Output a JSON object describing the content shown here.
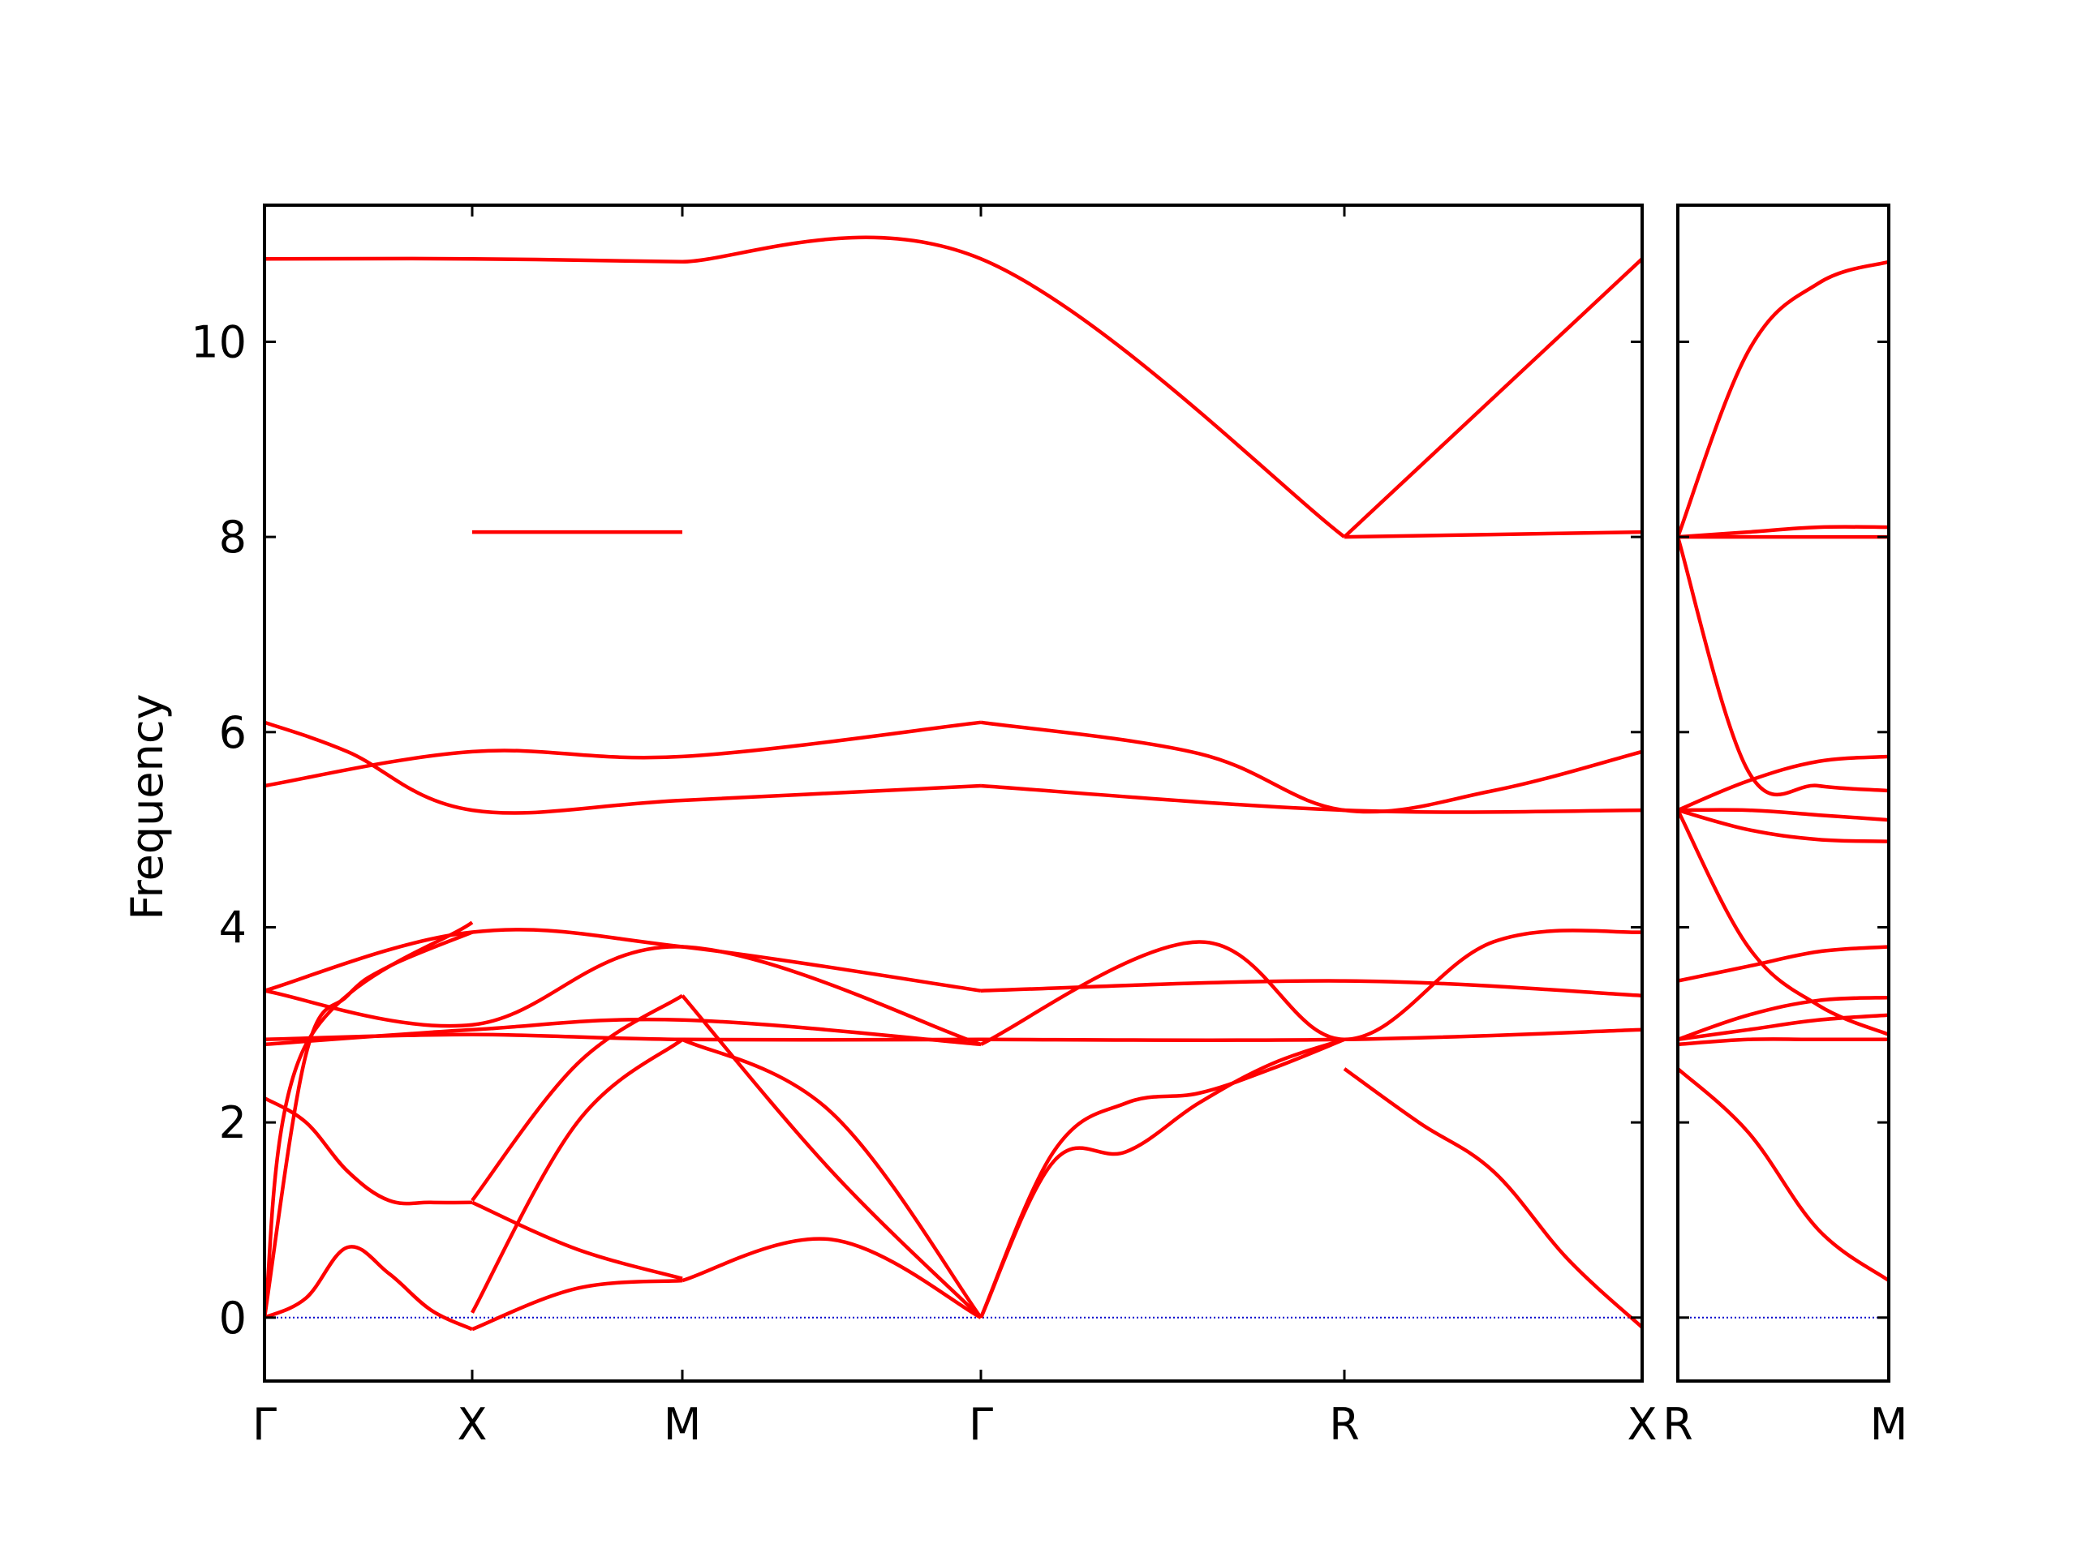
{
  "chart_data": [
    {
      "type": "line",
      "title": "",
      "xlabel": "",
      "ylabel": "Frequency",
      "ylim": [
        -0.65,
        11.4
      ],
      "grid": false,
      "legend": "none",
      "x_ticks": [
        "Γ",
        "X",
        "M",
        "Γ",
        "R",
        "X"
      ],
      "x_segments": [
        "Γ-X",
        "X-M",
        "M-Γ",
        "Γ-R",
        "R-X"
      ],
      "y_ticks": [
        0,
        2,
        4,
        6,
        8,
        10
      ],
      "line_color": "#ff0000",
      "zero_line_color": "#0000cc",
      "series": [
        {
          "x": [
            0,
            1,
            2,
            3,
            4,
            5
          ],
          "values": [
            0,
            0.2,
            0.72,
            0.45,
            0.08,
            -0.12
          ]
        },
        {
          "x": [
            5,
            6,
            7
          ],
          "values": [
            -0.12,
            0.3,
            0.38
          ]
        },
        {
          "x": [
            7,
            8,
            9
          ],
          "values": [
            0.38,
            0.8,
            0
          ]
        },
        {
          "x": [
            0,
            1,
            5
          ],
          "values": [
            0,
            2.8,
            4.05
          ]
        },
        {
          "x": [
            0,
            1,
            2,
            3,
            5
          ],
          "values": [
            0,
            2.7,
            3.3,
            3.6,
            3.95
          ]
        },
        {
          "x": [
            5,
            6,
            7
          ],
          "values": [
            0.05,
            2.0,
            2.85
          ]
        },
        {
          "x": [
            5,
            6,
            7
          ],
          "values": [
            1.2,
            2.6,
            3.3
          ]
        },
        {
          "x": [
            7,
            8,
            9
          ],
          "values": [
            3.3,
            1.5,
            0
          ]
        },
        {
          "x": [
            7,
            8,
            9
          ],
          "values": [
            2.85,
            2.1,
            0
          ]
        },
        {
          "x": [
            9,
            10,
            11,
            12,
            13,
            14
          ],
          "values": [
            0,
            1.7,
            2.2,
            2.3,
            2.55,
            2.85
          ]
        },
        {
          "x": [
            9,
            10,
            11,
            12,
            13,
            14
          ],
          "values": [
            0,
            1.6,
            1.7,
            2.2,
            2.6,
            2.85
          ]
        },
        {
          "x": [
            14,
            15,
            16,
            17,
            18
          ],
          "values": [
            2.55,
            2.0,
            1.5,
            0.6,
            -0.1
          ]
        },
        {
          "x": [
            0,
            1,
            2,
            3,
            4,
            5
          ],
          "values": [
            2.25,
            2.0,
            1.5,
            1.2,
            1.18,
            1.18
          ]
        },
        {
          "x": [
            5,
            6,
            7
          ],
          "values": [
            1.18,
            0.7,
            0.4
          ]
        },
        {
          "x": [
            0,
            5,
            7,
            9
          ],
          "values": [
            2.85,
            2.9,
            2.85,
            2.85
          ]
        },
        {
          "x": [
            0,
            5,
            7,
            9
          ],
          "values": [
            2.8,
            2.95,
            3.05,
            2.8
          ]
        },
        {
          "x": [
            0,
            5,
            7,
            9
          ],
          "values": [
            3.35,
            3.0,
            3.8,
            2.8
          ]
        },
        {
          "x": [
            0,
            5,
            7,
            9
          ],
          "values": [
            3.35,
            3.95,
            3.8,
            3.35
          ]
        },
        {
          "x": [
            9,
            14,
            18
          ],
          "values": [
            3.35,
            3.45,
            3.3
          ]
        },
        {
          "x": [
            9,
            14,
            18
          ],
          "values": [
            2.85,
            2.85,
            2.95
          ]
        },
        {
          "x": [
            9,
            12,
            14,
            16,
            18
          ],
          "values": [
            2.8,
            3.85,
            2.85,
            3.85,
            3.95
          ]
        },
        {
          "x": [
            0,
            2,
            5,
            7,
            9
          ],
          "values": [
            6.1,
            5.8,
            5.2,
            5.3,
            5.45
          ]
        },
        {
          "x": [
            0,
            5,
            7,
            9
          ],
          "values": [
            5.45,
            5.8,
            5.75,
            6.1
          ]
        },
        {
          "x": [
            9,
            12,
            14,
            16,
            18
          ],
          "values": [
            6.1,
            5.78,
            5.2,
            5.4,
            5.8
          ]
        },
        {
          "x": [
            9,
            14,
            18
          ],
          "values": [
            5.45,
            5.2,
            5.2
          ]
        },
        {
          "x": [
            0,
            5,
            7
          ],
          "values": [
            10.85,
            10.85,
            10.82
          ]
        },
        {
          "x": [
            7,
            9,
            14
          ],
          "values": [
            10.82,
            10.85,
            8.0
          ]
        },
        {
          "x": [
            14,
            18
          ],
          "values": [
            8.0,
            10.85
          ]
        },
        {
          "x": [
            5,
            7
          ],
          "values": [
            8.05,
            8.05
          ]
        },
        {
          "x": [
            14,
            18
          ],
          "values": [
            8.0,
            8.05
          ]
        }
      ],
      "notes_series_x": "x is the k-path point index along Γ-X-M-Γ-R-X (indices 0, 5, 7, 9, 14, 18 correspond to Γ, X, M, Γ, R, X)"
    },
    {
      "type": "line",
      "title": "",
      "xlabel": "",
      "ylabel": "",
      "ylim": [
        -0.65,
        11.4
      ],
      "grid": false,
      "legend": "none",
      "x_ticks": [
        "R",
        "M"
      ],
      "line_color": "#ff0000",
      "zero_line_color": "#0000cc",
      "series": [
        {
          "x": [
            0,
            1,
            2,
            3
          ],
          "values": [
            8.0,
            9.9,
            10.6,
            10.82
          ]
        },
        {
          "x": [
            0,
            1,
            2,
            3
          ],
          "values": [
            8.0,
            8.05,
            8.1,
            8.1
          ]
        },
        {
          "x": [
            0,
            1,
            2,
            3
          ],
          "values": [
            8.0,
            8.0,
            8.0,
            8.0
          ]
        },
        {
          "x": [
            0,
            1,
            2,
            3
          ],
          "values": [
            8.0,
            5.6,
            5.45,
            5.4
          ]
        },
        {
          "x": [
            0,
            1,
            2,
            3
          ],
          "values": [
            5.2,
            5.5,
            5.7,
            5.75
          ]
        },
        {
          "x": [
            0,
            1,
            2,
            3
          ],
          "values": [
            5.2,
            5.2,
            5.15,
            5.1
          ]
        },
        {
          "x": [
            0,
            1,
            2,
            3
          ],
          "values": [
            5.2,
            5.0,
            4.9,
            4.88
          ]
        },
        {
          "x": [
            0,
            1,
            2,
            3
          ],
          "values": [
            5.2,
            3.8,
            3.2,
            2.9
          ]
        },
        {
          "x": [
            0,
            1,
            2,
            3
          ],
          "values": [
            3.45,
            3.6,
            3.75,
            3.8
          ]
        },
        {
          "x": [
            0,
            1,
            2,
            3
          ],
          "values": [
            2.85,
            3.1,
            3.25,
            3.28
          ]
        },
        {
          "x": [
            0,
            1,
            2,
            3
          ],
          "values": [
            2.85,
            2.95,
            3.05,
            3.1
          ]
        },
        {
          "x": [
            0,
            1,
            2,
            3
          ],
          "values": [
            2.8,
            2.85,
            2.85,
            2.85
          ]
        },
        {
          "x": [
            0,
            1,
            2,
            3
          ],
          "values": [
            2.55,
            1.9,
            0.9,
            0.38
          ]
        }
      ]
    }
  ]
}
